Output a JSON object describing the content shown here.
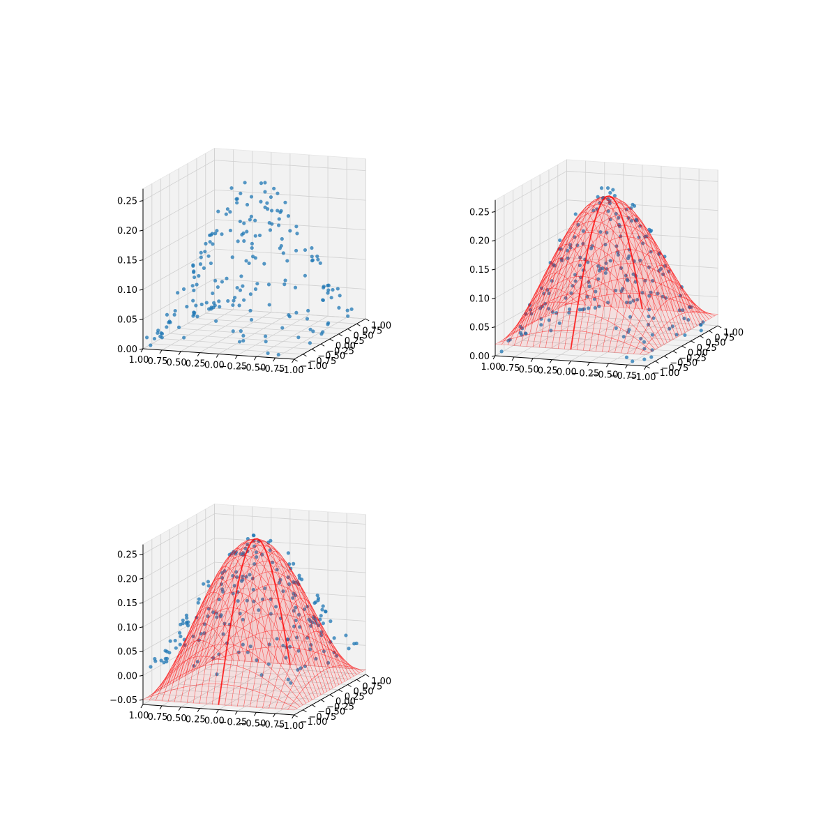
{
  "figure": {
    "background": "#ffffff",
    "layout": "2x2 grid, last cell empty"
  },
  "chart_data": [
    {
      "type": "scatter3d",
      "title": "",
      "xlabel": "",
      "ylabel": "",
      "zlabel": "",
      "xlim": [
        -1.0,
        1.0
      ],
      "ylim": [
        -1.0,
        1.0
      ],
      "zlim": [
        0.0,
        0.27
      ],
      "x_ticks": [
        "1.00",
        "0.75",
        "0.50",
        "0.25",
        "0.00",
        "−0.25",
        "−0.50",
        "−0.75",
        "−1.00"
      ],
      "y_ticks": [
        "−1.00",
        "−0.75",
        "−0.50",
        "−0.25",
        "0.00",
        "0.25",
        "0.50",
        "0.75",
        "1.00"
      ],
      "z_ticks": [
        "0.00",
        "0.05",
        "0.10",
        "0.15",
        "0.20",
        "0.25"
      ],
      "grid": true,
      "points_count": 200,
      "marker_color": "#1f77b4",
      "surface": null
    },
    {
      "type": "scatter3d+surface",
      "title": "",
      "xlabel": "",
      "ylabel": "",
      "zlabel": "",
      "xlim": [
        -1.0,
        1.0
      ],
      "ylim": [
        -1.0,
        1.0
      ],
      "zlim": [
        0.0,
        0.27
      ],
      "x_ticks": [
        "1.00",
        "0.75",
        "0.50",
        "0.25",
        "0.00",
        "−0.25",
        "−0.50",
        "−0.75",
        "−1.00"
      ],
      "y_ticks": [
        "−1.00",
        "−0.75",
        "−0.50",
        "−0.25",
        "0.00",
        "0.25",
        "0.50",
        "0.75",
        "1.00"
      ],
      "z_ticks": [
        "0.00",
        "0.05",
        "0.10",
        "0.15",
        "0.20",
        "0.25"
      ],
      "grid": true,
      "points_count": 200,
      "marker_color": "#1f77b4",
      "surface": {
        "color": "#ff0000",
        "style": "wireframe",
        "peak": 0.25,
        "edge": 0.02
      }
    },
    {
      "type": "scatter3d+surface",
      "title": "",
      "xlabel": "",
      "ylabel": "",
      "zlabel": "",
      "xlim": [
        -1.0,
        1.0
      ],
      "ylim": [
        -1.0,
        1.0
      ],
      "zlim": [
        -0.06,
        0.27
      ],
      "x_ticks": [
        "1.00",
        "0.75",
        "0.50",
        "0.25",
        "0.00",
        "−0.25",
        "−0.50",
        "−0.75",
        "−1.00"
      ],
      "y_ticks": [
        "−1.00",
        "−0.75",
        "−0.50",
        "−0.25",
        "0.00",
        "0.25",
        "0.50",
        "0.75",
        "1.00"
      ],
      "z_ticks": [
        "−0.05",
        "0.00",
        "0.05",
        "0.10",
        "0.15",
        "0.20",
        "0.25"
      ],
      "grid": true,
      "points_count": 200,
      "marker_color": "#1f77b4",
      "surface": {
        "color": "#ff0000",
        "style": "wireframe",
        "peak": 0.25,
        "edge": -0.05
      }
    }
  ]
}
